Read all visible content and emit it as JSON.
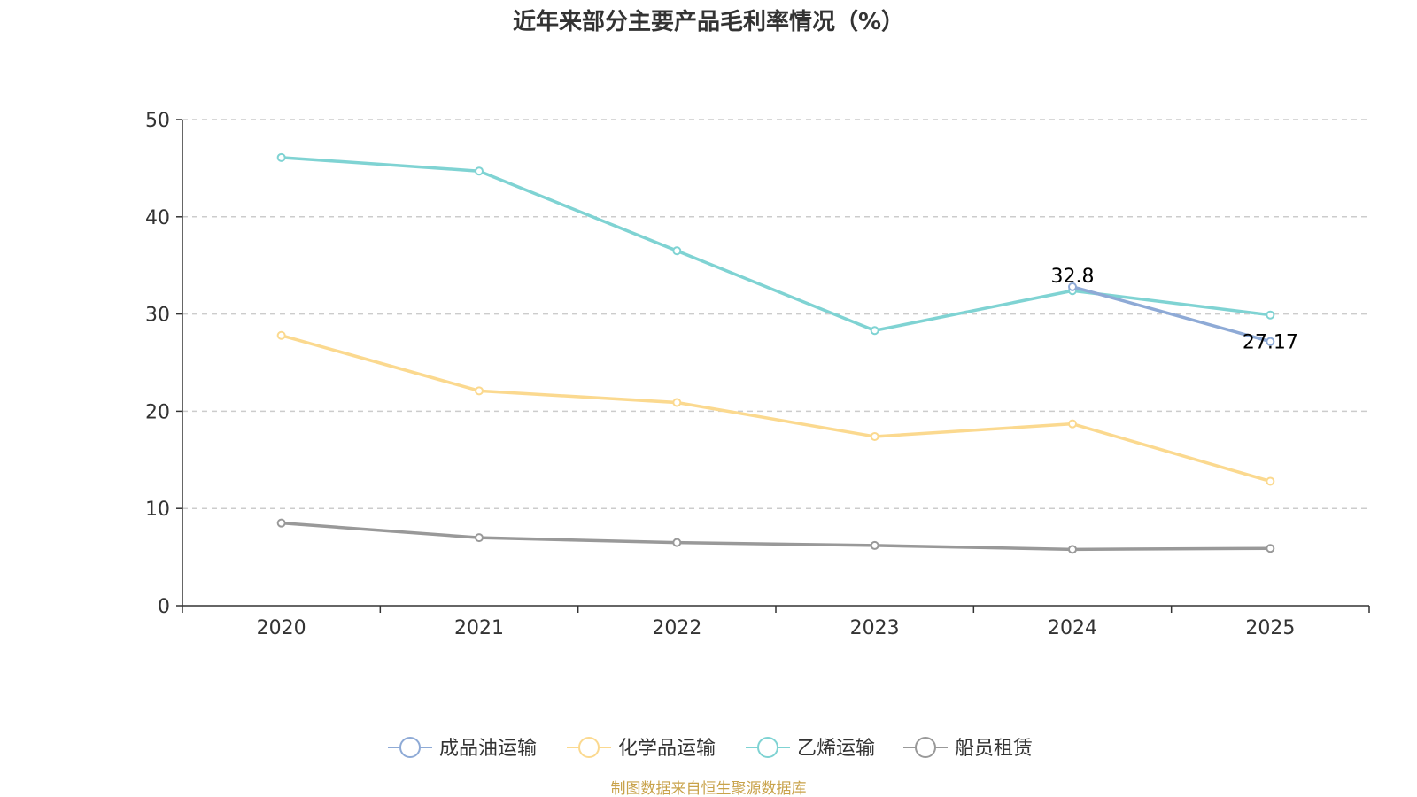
{
  "chart_data": {
    "type": "line",
    "title": "近年来部分主要产品毛利率情况（%）",
    "categories": [
      "2020",
      "2021",
      "2022",
      "2023",
      "2024",
      "2025"
    ],
    "ylim": [
      0,
      50
    ],
    "yticks": [
      0,
      10,
      20,
      30,
      40,
      50
    ],
    "grid": true,
    "legend_position": "bottom",
    "series": [
      {
        "name": "成品油运输",
        "color": "#8eaad6",
        "values": [
          null,
          null,
          null,
          null,
          32.8,
          27.17
        ],
        "labels": [
          "",
          "",
          "",
          "",
          "32.8",
          "27.17"
        ]
      },
      {
        "name": "化学品运输",
        "color": "#fbd98f",
        "values": [
          27.8,
          22.1,
          20.9,
          17.4,
          18.7,
          12.8
        ]
      },
      {
        "name": "乙烯运输",
        "color": "#7fd3d3",
        "values": [
          46.1,
          44.7,
          36.5,
          28.3,
          32.4,
          29.9
        ]
      },
      {
        "name": "船员租赁",
        "color": "#999999",
        "values": [
          8.5,
          7.0,
          6.5,
          6.2,
          5.8,
          5.9
        ]
      }
    ]
  },
  "source": {
    "text": "制图数据来自恒生聚源数据库",
    "color": "#c8a24a"
  }
}
